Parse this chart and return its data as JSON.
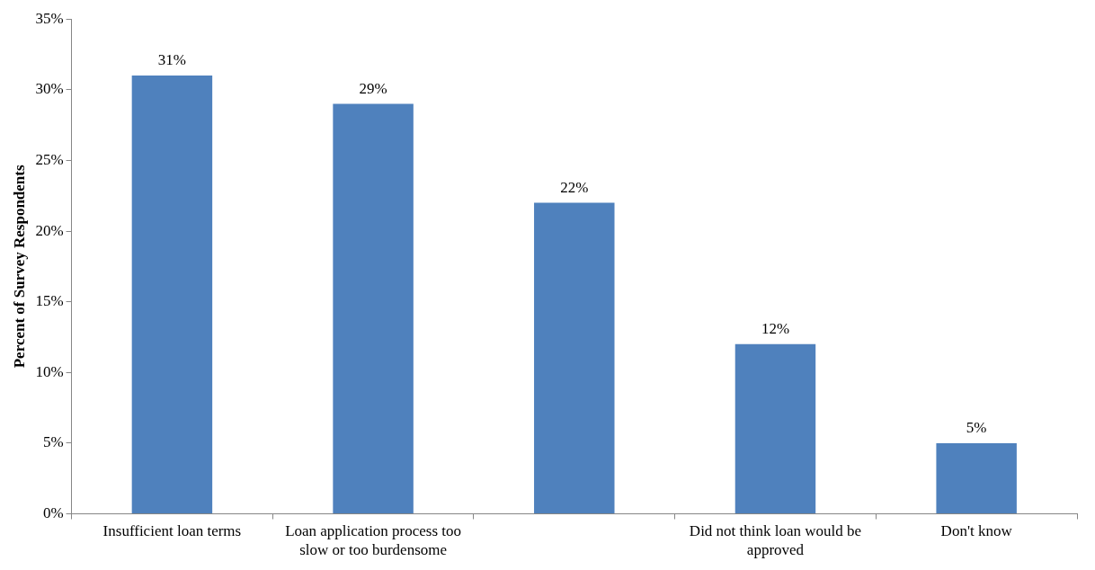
{
  "chart_data": {
    "type": "bar",
    "ylabel": "Percent of Survey Respondents",
    "categories": [
      "Insufficient loan terms",
      "Loan application process too slow or too burdensome",
      null,
      "Did not think loan would be approved",
      "Don't know"
    ],
    "values": [
      31,
      29,
      22,
      12,
      5
    ],
    "color": "#4f81bd",
    "ylim": [
      0,
      35
    ],
    "yticks": [
      {
        "value": 0,
        "label": "0%"
      },
      {
        "value": 5,
        "label": "5%"
      },
      {
        "value": 10,
        "label": "10%"
      },
      {
        "value": 15,
        "label": "15%"
      },
      {
        "value": 20,
        "label": "20%"
      },
      {
        "value": 25,
        "label": "25%"
      },
      {
        "value": 30,
        "label": "30%"
      },
      {
        "value": 35,
        "label": "35%"
      }
    ],
    "value_labels": [
      "31%",
      "29%",
      "22%",
      "12%",
      "5%"
    ],
    "grid": false,
    "legend": false
  }
}
